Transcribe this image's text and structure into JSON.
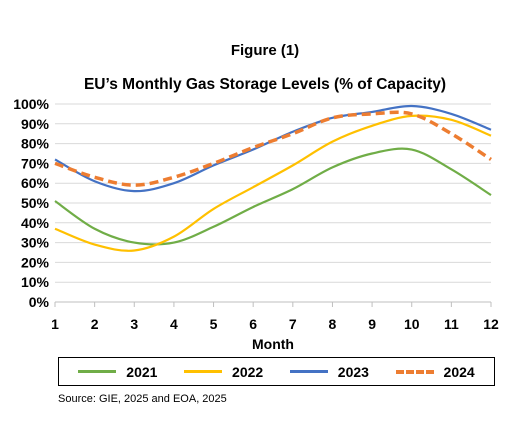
{
  "figure_label": "Figure (1)",
  "source": "Source: GIE, 2025 and EOA, 2025",
  "chart_data": {
    "type": "line",
    "title": "EU’s Monthly Gas Storage Levels (% of Capacity)",
    "xlabel": "Month",
    "ylabel": "",
    "x": [
      1,
      2,
      3,
      4,
      5,
      6,
      7,
      8,
      9,
      10,
      11,
      12
    ],
    "xlim": [
      1,
      12
    ],
    "ylim": [
      0,
      100
    ],
    "yticks": [
      "0%",
      "10%",
      "20%",
      "30%",
      "40%",
      "50%",
      "60%",
      "70%",
      "80%",
      "90%",
      "100%"
    ],
    "xticks": [
      "1",
      "2",
      "3",
      "4",
      "5",
      "6",
      "7",
      "8",
      "9",
      "10",
      "11",
      "12"
    ],
    "grid": "horizontal",
    "legend_placement": "bottom",
    "series": [
      {
        "name": "2021",
        "color": "#70AD47",
        "style": "solid",
        "values": [
          51,
          37,
          30,
          30,
          38,
          48,
          57,
          68,
          75,
          77,
          67,
          54
        ]
      },
      {
        "name": "2022",
        "color": "#FFC000",
        "style": "solid",
        "values": [
          37,
          29,
          26,
          33,
          47,
          58,
          69,
          81,
          89,
          94,
          92,
          84
        ]
      },
      {
        "name": "2023",
        "color": "#4472C4",
        "style": "solid",
        "values": [
          72,
          61,
          56,
          60,
          69,
          77,
          86,
          93,
          96,
          99,
          95,
          87
        ]
      },
      {
        "name": "2024",
        "color": "#ED7D31",
        "style": "dashed",
        "values": [
          70,
          63,
          59,
          63,
          70,
          78,
          85,
          93,
          95,
          95,
          85,
          72
        ]
      }
    ]
  }
}
